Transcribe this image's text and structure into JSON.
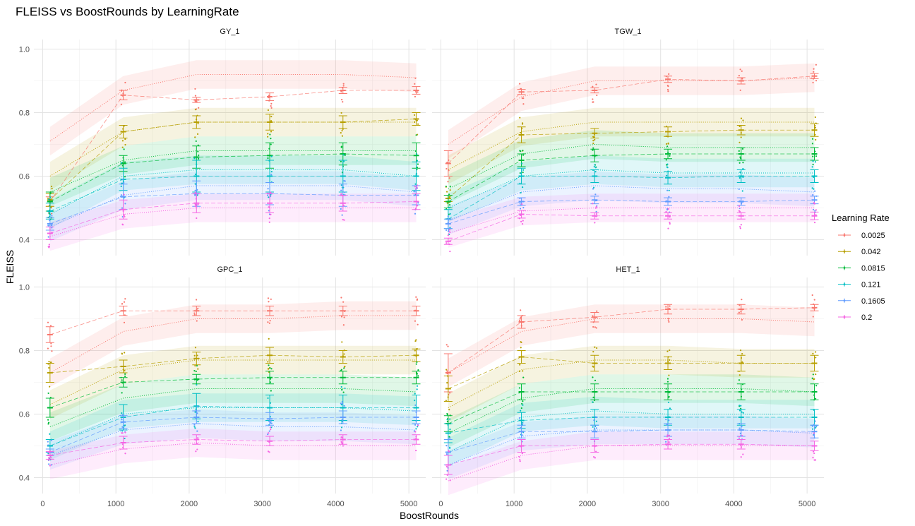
{
  "chart_data": {
    "type": "line",
    "title": "FLEISS vs BoostRounds by LearningRate",
    "xlabel": "BoostRounds",
    "ylabel": "FLEISS",
    "xlim": [
      -120,
      5230
    ],
    "ylim": [
      0.35,
      1.03
    ],
    "x_ticks": [
      0,
      1000,
      2000,
      3000,
      4000,
      5000
    ],
    "x_tick_labels": [
      "0",
      "1000",
      "2000",
      "3000",
      "4000",
      "5000"
    ],
    "y_ticks": [
      0.4,
      0.6,
      0.8,
      1.0
    ],
    "y_tick_labels": [
      "0.4",
      "0.6",
      "0.8",
      "1.0"
    ],
    "grid": true,
    "legend_position": "right",
    "legend_title": "Learning Rate",
    "series_colors": [
      "#f8766d",
      "#b79f00",
      "#00ba38",
      "#00bfc4",
      "#619cff",
      "#f564e3"
    ],
    "x": [
      100,
      1100,
      2100,
      3100,
      4100,
      5100
    ],
    "panels": [
      {
        "label": "GY_1",
        "series": [
          {
            "name": "0.0025",
            "mean": [
              0.52,
              0.855,
              0.84,
              0.85,
              0.87,
              0.87
            ],
            "err": [
              0.015,
              0.015,
              0.008,
              0.012,
              0.01,
              0.012
            ],
            "smooth": [
              0.71,
              0.87,
              0.92,
              0.92,
              0.92,
              0.91
            ]
          },
          {
            "name": "0.042",
            "mean": [
              0.525,
              0.74,
              0.77,
              0.77,
              0.77,
              0.78
            ],
            "err": [
              0.02,
              0.02,
              0.02,
              0.025,
              0.02,
              0.02
            ],
            "smooth": [
              0.6,
              0.74,
              0.77,
              0.77,
              0.77,
              0.77
            ]
          },
          {
            "name": "0.0815",
            "mean": [
              0.52,
              0.64,
              0.66,
              0.665,
              0.67,
              0.665
            ],
            "err": [
              0.03,
              0.025,
              0.035,
              0.04,
              0.035,
              0.04
            ],
            "smooth": [
              0.55,
              0.65,
              0.68,
              0.68,
              0.68,
              0.68
            ]
          },
          {
            "name": "0.121",
            "mean": [
              0.49,
              0.59,
              0.6,
              0.6,
              0.6,
              0.6
            ],
            "err": [
              0.025,
              0.035,
              0.05,
              0.05,
              0.05,
              0.045
            ],
            "smooth": [
              0.48,
              0.6,
              0.62,
              0.62,
              0.62,
              0.6
            ]
          },
          {
            "name": "0.1605",
            "mean": [
              0.45,
              0.535,
              0.545,
              0.545,
              0.54,
              0.54
            ],
            "err": [
              0.02,
              0.04,
              0.04,
              0.035,
              0.035,
              0.03
            ],
            "smooth": [
              0.44,
              0.54,
              0.57,
              0.57,
              0.57,
              0.55
            ]
          },
          {
            "name": "0.2",
            "mean": [
              0.42,
              0.495,
              0.515,
              0.515,
              0.515,
              0.52
            ],
            "err": [
              0.02,
              0.03,
              0.03,
              0.03,
              0.025,
              0.025
            ],
            "smooth": [
              0.41,
              0.48,
              0.5,
              0.5,
              0.5,
              0.5
            ]
          }
        ]
      },
      {
        "label": "TGW_1",
        "series": [
          {
            "name": "0.0025",
            "mean": [
              0.64,
              0.865,
              0.87,
              0.905,
              0.9,
              0.915
            ],
            "err": [
              0.04,
              0.008,
              0.008,
              0.01,
              0.01,
              0.008
            ],
            "smooth": [
              0.7,
              0.85,
              0.9,
              0.9,
              0.9,
              0.91
            ]
          },
          {
            "name": "0.042",
            "mean": [
              0.53,
              0.73,
              0.735,
              0.74,
              0.745,
              0.745
            ],
            "err": [
              0.01,
              0.025,
              0.015,
              0.015,
              0.015,
              0.02
            ],
            "smooth": [
              0.62,
              0.74,
              0.77,
              0.77,
              0.77,
              0.77
            ]
          },
          {
            "name": "0.0815",
            "mean": [
              0.52,
              0.65,
              0.665,
              0.67,
              0.67,
              0.67
            ],
            "err": [
              0.02,
              0.02,
              0.02,
              0.015,
              0.02,
              0.02
            ],
            "smooth": [
              0.56,
              0.67,
              0.7,
              0.69,
              0.69,
              0.69
            ]
          },
          {
            "name": "0.121",
            "mean": [
              0.465,
              0.6,
              0.6,
              0.595,
              0.6,
              0.6
            ],
            "err": [
              0.03,
              0.025,
              0.02,
              0.02,
              0.02,
              0.02
            ],
            "smooth": [
              0.5,
              0.6,
              0.62,
              0.61,
              0.61,
              0.61
            ]
          },
          {
            "name": "0.1605",
            "mean": [
              0.45,
              0.52,
              0.525,
              0.52,
              0.52,
              0.525
            ],
            "err": [
              0.015,
              0.012,
              0.012,
              0.012,
              0.012,
              0.012
            ],
            "smooth": [
              0.46,
              0.55,
              0.57,
              0.56,
              0.56,
              0.55
            ]
          },
          {
            "name": "0.2",
            "mean": [
              0.395,
              0.48,
              0.475,
              0.475,
              0.475,
              0.475
            ],
            "err": [
              0.01,
              0.012,
              0.01,
              0.01,
              0.01,
              0.012
            ],
            "smooth": [
              0.42,
              0.49,
              0.5,
              0.5,
              0.5,
              0.5
            ]
          }
        ]
      },
      {
        "label": "GPC_1",
        "series": [
          {
            "name": "0.0025",
            "mean": [
              0.85,
              0.925,
              0.925,
              0.925,
              0.925,
              0.925
            ],
            "err": [
              0.025,
              0.015,
              0.015,
              0.015,
              0.015,
              0.015
            ],
            "smooth": [
              0.73,
              0.86,
              0.9,
              0.9,
              0.91,
              0.91
            ]
          },
          {
            "name": "0.042",
            "mean": [
              0.73,
              0.75,
              0.775,
              0.785,
              0.78,
              0.785
            ],
            "err": [
              0.03,
              0.02,
              0.02,
              0.025,
              0.02,
              0.02
            ],
            "smooth": [
              0.63,
              0.74,
              0.77,
              0.77,
              0.77,
              0.77
            ]
          },
          {
            "name": "0.0815",
            "mean": [
              0.62,
              0.7,
              0.71,
              0.715,
              0.715,
              0.715
            ],
            "err": [
              0.03,
              0.015,
              0.015,
              0.02,
              0.02,
              0.02
            ],
            "smooth": [
              0.56,
              0.65,
              0.68,
              0.68,
              0.68,
              0.67
            ]
          },
          {
            "name": "0.121",
            "mean": [
              0.5,
              0.59,
              0.625,
              0.62,
              0.62,
              0.62
            ],
            "err": [
              0.02,
              0.04,
              0.04,
              0.04,
              0.04,
              0.04
            ],
            "smooth": [
              0.5,
              0.6,
              0.62,
              0.62,
              0.62,
              0.61
            ]
          },
          {
            "name": "0.1605",
            "mean": [
              0.48,
              0.575,
              0.59,
              0.585,
              0.59,
              0.59
            ],
            "err": [
              0.01,
              0.02,
              0.02,
              0.02,
              0.02,
              0.02
            ],
            "smooth": [
              0.47,
              0.55,
              0.57,
              0.56,
              0.56,
              0.55
            ]
          },
          {
            "name": "0.2",
            "mean": [
              0.47,
              0.51,
              0.52,
              0.515,
              0.52,
              0.52
            ],
            "err": [
              0.012,
              0.02,
              0.015,
              0.015,
              0.015,
              0.015
            ],
            "smooth": [
              0.44,
              0.49,
              0.51,
              0.5,
              0.5,
              0.5
            ]
          }
        ]
      },
      {
        "label": "HET_1",
        "series": [
          {
            "name": "0.0025",
            "mean": [
              0.73,
              0.89,
              0.905,
              0.93,
              0.93,
              0.935
            ],
            "err": [
              0.06,
              0.02,
              0.015,
              0.015,
              0.015,
              0.01
            ],
            "smooth": [
              0.73,
              0.86,
              0.9,
              0.9,
              0.9,
              0.89
            ]
          },
          {
            "name": "0.042",
            "mean": [
              0.68,
              0.78,
              0.76,
              0.76,
              0.76,
              0.76
            ],
            "err": [
              0.04,
              0.02,
              0.025,
              0.02,
              0.025,
              0.025
            ],
            "smooth": [
              0.62,
              0.74,
              0.77,
              0.77,
              0.76,
              0.76
            ]
          },
          {
            "name": "0.0815",
            "mean": [
              0.57,
              0.67,
              0.67,
              0.67,
              0.67,
              0.67
            ],
            "err": [
              0.025,
              0.025,
              0.025,
              0.025,
              0.025,
              0.025
            ],
            "smooth": [
              0.54,
              0.65,
              0.68,
              0.68,
              0.68,
              0.67
            ]
          },
          {
            "name": "0.121",
            "mean": [
              0.54,
              0.58,
              0.59,
              0.59,
              0.59,
              0.59
            ],
            "err": [
              0.03,
              0.025,
              0.025,
              0.025,
              0.025,
              0.025
            ],
            "smooth": [
              0.48,
              0.59,
              0.61,
              0.6,
              0.6,
              0.6
            ]
          },
          {
            "name": "0.1605",
            "mean": [
              0.48,
              0.545,
              0.545,
              0.55,
              0.55,
              0.545
            ],
            "err": [
              0.04,
              0.02,
              0.02,
              0.02,
              0.02,
              0.02
            ],
            "smooth": [
              0.44,
              0.53,
              0.55,
              0.55,
              0.55,
              0.54
            ]
          },
          {
            "name": "0.2",
            "mean": [
              0.44,
              0.5,
              0.5,
              0.505,
              0.505,
              0.5
            ],
            "err": [
              0.03,
              0.02,
              0.02,
              0.015,
              0.015,
              0.015
            ],
            "smooth": [
              0.39,
              0.47,
              0.5,
              0.5,
              0.5,
              0.5
            ]
          }
        ]
      }
    ]
  }
}
